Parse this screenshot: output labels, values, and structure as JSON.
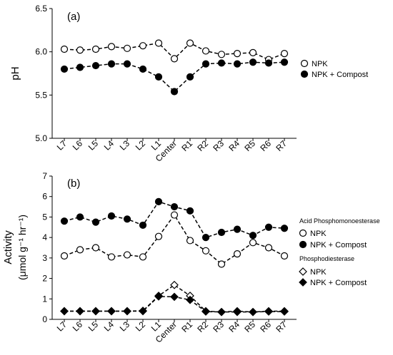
{
  "chart_data": [
    {
      "type": "line",
      "panel_label": "(a)",
      "xlabel": "",
      "ylabel": "pH",
      "categories": [
        "L7",
        "L6",
        "L5",
        "L4",
        "L3",
        "L2",
        "L1",
        "Center",
        "R1",
        "R2",
        "R3",
        "R4",
        "R5",
        "R6",
        "R7"
      ],
      "ylim": [
        5.0,
        6.5
      ],
      "yticks": [
        "5.0",
        "5.5",
        "6.0",
        "6.5"
      ],
      "grid": false,
      "legend_position": "right",
      "series": [
        {
          "name": "NPK",
          "marker": "circle-open",
          "values": [
            6.03,
            6.02,
            6.03,
            6.06,
            6.04,
            6.07,
            6.1,
            5.92,
            6.1,
            6.01,
            5.97,
            5.98,
            5.99,
            5.91,
            5.98
          ]
        },
        {
          "name": "NPK + Compost",
          "marker": "circle-filled",
          "values": [
            5.8,
            5.82,
            5.84,
            5.86,
            5.86,
            5.8,
            5.71,
            5.54,
            5.71,
            5.86,
            5.87,
            5.86,
            5.88,
            5.87,
            5.88
          ]
        }
      ]
    },
    {
      "type": "line",
      "panel_label": "(b)",
      "xlabel": "",
      "ylabel_line1": "Activity",
      "ylabel_line2": "(μmol g⁻¹ hr⁻¹)",
      "categories": [
        "L7",
        "L6",
        "L5",
        "L4",
        "L3",
        "L2",
        "L1",
        "Center",
        "R1",
        "R2",
        "R3",
        "R4",
        "R5",
        "R6",
        "R7"
      ],
      "ylim": [
        0,
        7
      ],
      "yticks": [
        "0",
        "1",
        "2",
        "3",
        "4",
        "5",
        "6",
        "7"
      ],
      "grid": false,
      "legend_position": "right",
      "legend_groups": [
        {
          "title": "Acid Phosphomonoesterase",
          "entries": [
            "NPK",
            "NPK + Compost"
          ]
        },
        {
          "title": "Phosphodiesterase",
          "entries": [
            "NPK",
            "NPK + Compost"
          ]
        }
      ],
      "series": [
        {
          "group": "Acid Phosphomonoesterase",
          "name": "NPK",
          "marker": "circle-open",
          "values": [
            3.1,
            3.4,
            3.5,
            3.05,
            3.15,
            3.05,
            4.05,
            5.1,
            3.85,
            3.35,
            2.7,
            3.2,
            3.75,
            3.5,
            3.1
          ]
        },
        {
          "group": "Acid Phosphomonoesterase",
          "name": "NPK + Compost",
          "marker": "circle-filled",
          "values": [
            4.8,
            5.0,
            4.75,
            5.05,
            4.9,
            4.6,
            5.75,
            5.5,
            5.3,
            4.0,
            4.25,
            4.4,
            4.1,
            4.5,
            4.45
          ]
        },
        {
          "group": "Phosphodiesterase",
          "name": "NPK",
          "marker": "diamond-open",
          "values": [
            0.4,
            0.4,
            0.4,
            0.4,
            0.4,
            0.42,
            1.15,
            1.68,
            1.15,
            0.4,
            0.36,
            0.4,
            0.36,
            0.4,
            0.4
          ]
        },
        {
          "group": "Phosphodiesterase",
          "name": "NPK + Compost",
          "marker": "diamond-filled",
          "values": [
            0.4,
            0.4,
            0.4,
            0.4,
            0.4,
            0.4,
            1.12,
            1.1,
            0.95,
            0.38,
            0.36,
            0.36,
            0.36,
            0.38,
            0.38
          ]
        }
      ]
    }
  ]
}
